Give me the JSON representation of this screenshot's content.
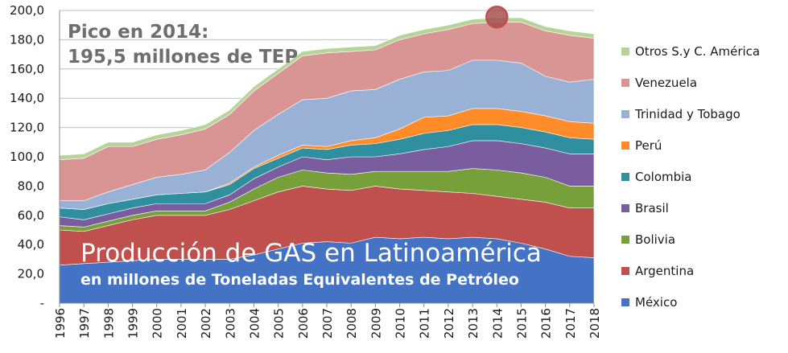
{
  "chart_data": {
    "type": "area",
    "stacked": true,
    "title": "Producción de GAS en Latinoamérica",
    "subtitle": "en millones de Toneladas Equivalentes de Petróleo",
    "annotation_line1": "Pico en 2014:",
    "annotation_line2": "195,5 millones de TEP",
    "peak_year": 2014,
    "peak_value": 195.5,
    "x": [
      1996,
      1997,
      1998,
      1999,
      2000,
      2001,
      2002,
      2003,
      2004,
      2005,
      2006,
      2007,
      2008,
      2009,
      2010,
      2011,
      2012,
      2013,
      2014,
      2015,
      2016,
      2017,
      2018
    ],
    "ylim": [
      0,
      200
    ],
    "yticks": [
      "-",
      "20,0",
      "40,0",
      "60,0",
      "80,0",
      "100,0",
      "120,0",
      "140,0",
      "160,0",
      "180,0",
      "200,0"
    ],
    "grid": true,
    "legend_position": "right",
    "series": [
      {
        "name": "México",
        "color": "#4472c4",
        "values": [
          26,
          27,
          28,
          29,
          30,
          30,
          30,
          30,
          33,
          37,
          41,
          42,
          41,
          45,
          44,
          45,
          44,
          45,
          44,
          41,
          37,
          32,
          31
        ]
      },
      {
        "name": "Argentina",
        "color": "#c0504d",
        "values": [
          24,
          22,
          25,
          28,
          30,
          30,
          30,
          34,
          37,
          39,
          39,
          36,
          36,
          35,
          34,
          32,
          32,
          30,
          29,
          30,
          32,
          33,
          34
        ]
      },
      {
        "name": "Bolivia",
        "color": "#77a03b",
        "values": [
          3,
          3,
          3,
          3,
          3,
          3,
          3,
          5,
          8,
          10,
          11,
          11,
          11,
          10,
          12,
          13,
          14,
          17,
          18,
          18,
          17,
          15,
          15
        ]
      },
      {
        "name": "Brasil",
        "color": "#7a5d9e",
        "values": [
          6,
          5,
          5,
          5,
          5,
          5,
          5,
          5,
          7,
          7,
          9,
          9,
          12,
          10,
          12,
          15,
          17,
          19,
          20,
          20,
          20,
          22,
          22
        ]
      },
      {
        "name": "Colombia",
        "color": "#2f8f9f",
        "values": [
          6,
          7,
          7,
          6,
          6,
          7,
          8,
          7,
          7,
          6,
          6,
          7,
          8,
          9,
          10,
          11,
          11,
          11,
          11,
          11,
          11,
          11,
          10
        ]
      },
      {
        "name": "Perú",
        "color": "#ff8c29",
        "values": [
          0,
          0,
          0,
          0,
          0,
          0,
          0,
          1,
          1,
          2,
          2,
          2,
          3,
          4,
          7,
          11,
          10,
          11,
          11,
          11,
          11,
          11,
          11
        ]
      },
      {
        "name": "Trinidad y Tobago",
        "color": "#9ab1d6",
        "values": [
          5,
          6,
          8,
          10,
          12,
          13,
          15,
          21,
          25,
          28,
          31,
          33,
          34,
          33,
          34,
          31,
          31,
          33,
          33,
          33,
          27,
          27,
          30
        ]
      },
      {
        "name": "Venezuela",
        "color": "#d99594",
        "values": [
          28,
          29,
          31,
          26,
          26,
          27,
          28,
          26,
          27,
          28,
          30,
          31,
          27,
          27,
          27,
          26,
          28,
          25,
          26,
          28,
          31,
          32,
          28
        ]
      },
      {
        "name": "Otros S.y C. América",
        "color": "#b6d49a",
        "values": [
          3,
          3,
          3,
          3,
          3,
          3,
          3,
          3,
          3,
          3,
          3,
          3,
          3,
          3,
          3,
          3,
          3,
          3,
          3,
          3,
          3,
          3,
          3
        ]
      }
    ]
  }
}
